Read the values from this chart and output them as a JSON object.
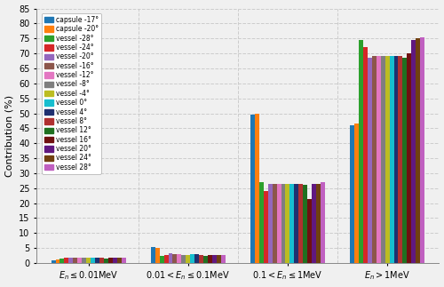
{
  "series_labels": [
    "capsule -17°",
    "capsule -20°",
    "vessel -28°",
    "vessel -24°",
    "vessel -20°",
    "vessel -16°",
    "vessel -12°",
    "vessel -8°",
    "vessel -4°",
    "vessel 0°",
    "vessel 4°",
    "vessel 8°",
    "vessel 12°",
    "vessel 16°",
    "vessel 20°",
    "vessel 24°",
    "vessel 28°"
  ],
  "colors": [
    "#1f77b4",
    "#ff7f0e",
    "#2ca02c",
    "#d62728",
    "#9467bd",
    "#8c564b",
    "#e377c2",
    "#7f7f7f",
    "#bcbd22",
    "#17becf",
    "#1f3070",
    "#b03030",
    "#207020",
    "#701010",
    "#601880",
    "#704010",
    "#c060c0"
  ],
  "data": [
    [
      1.0,
      5.2,
      49.5,
      46.0
    ],
    [
      1.2,
      5.0,
      50.0,
      46.5
    ],
    [
      1.5,
      2.5,
      27.0,
      74.5
    ],
    [
      1.8,
      2.8,
      24.0,
      72.0
    ],
    [
      1.8,
      3.2,
      26.5,
      68.5
    ],
    [
      1.8,
      3.0,
      26.5,
      69.0
    ],
    [
      1.8,
      3.0,
      26.5,
      69.0
    ],
    [
      1.8,
      2.8,
      26.5,
      69.0
    ],
    [
      1.8,
      2.8,
      26.5,
      69.0
    ],
    [
      1.8,
      3.0,
      26.5,
      69.0
    ],
    [
      1.8,
      3.0,
      26.5,
      69.0
    ],
    [
      1.8,
      2.8,
      26.5,
      69.0
    ],
    [
      1.5,
      2.5,
      26.0,
      68.5
    ],
    [
      1.8,
      2.8,
      21.5,
      70.0
    ],
    [
      1.8,
      2.8,
      26.5,
      74.5
    ],
    [
      1.8,
      2.8,
      26.5,
      75.0
    ],
    [
      1.8,
      2.8,
      27.0,
      75.5
    ]
  ],
  "xlabels": [
    "$E_n \\leq 0.01$MeV",
    "$0.01< E_n \\leq 0.1$MeV",
    "$0.1< E_n \\leq 1$MeV",
    "$E_n>1$MeV"
  ],
  "ylim": [
    0,
    85
  ],
  "yticks": [
    0,
    5,
    10,
    15,
    20,
    25,
    30,
    35,
    40,
    45,
    50,
    55,
    60,
    65,
    70,
    75,
    80,
    85
  ],
  "ylabel": "Contribution (%)",
  "background_color": "#f0f0f0",
  "grid_color": "#cccccc"
}
